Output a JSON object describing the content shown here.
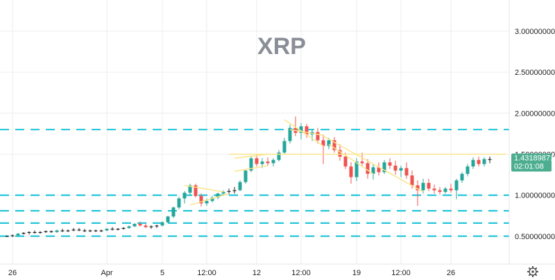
{
  "chart_data": {
    "type": "candlestick",
    "title": "XRP",
    "y_tick_labels": [
      "3.00000000",
      "2.50000000",
      "2.00000000",
      "1.50000000",
      "1.00000000",
      "0.50000000"
    ],
    "y_ticks": [
      3.0,
      2.5,
      2.0,
      1.5,
      1.0,
      0.5
    ],
    "ylim": [
      0.16,
      3.38
    ],
    "x_tick_labels": [
      "26",
      "Apr",
      "5",
      "12:00",
      "12",
      "12:00",
      "19",
      "12:00",
      "26"
    ],
    "x_tick_index": [
      1,
      18,
      28,
      36,
      45,
      53,
      63,
      71,
      80
    ],
    "x_count": 88,
    "current_price": "1.43189871",
    "countdown": "02:01:08",
    "horizontal_levels": [
      1.8,
      1.0,
      0.81,
      0.66,
      0.5
    ],
    "resistance_level": 1.5,
    "grid": true,
    "colors": {
      "up": "#26a69a",
      "down": "#ef5350",
      "level": "#26c6da",
      "trendline": "#fbe58a",
      "tag_bg": "#4cae8f",
      "axis_text": "#222222",
      "title": "#8a8e96"
    },
    "candles": [
      [
        0.5,
        0.51,
        0.49,
        0.5
      ],
      [
        0.5,
        0.52,
        0.49,
        0.51
      ],
      [
        0.51,
        0.54,
        0.5,
        0.53
      ],
      [
        0.53,
        0.55,
        0.52,
        0.54
      ],
      [
        0.54,
        0.56,
        0.52,
        0.55
      ],
      [
        0.55,
        0.57,
        0.53,
        0.54
      ],
      [
        0.54,
        0.56,
        0.53,
        0.55
      ],
      [
        0.55,
        0.57,
        0.54,
        0.56
      ],
      [
        0.56,
        0.57,
        0.54,
        0.55
      ],
      [
        0.55,
        0.58,
        0.54,
        0.57
      ],
      [
        0.57,
        0.59,
        0.55,
        0.56
      ],
      [
        0.56,
        0.58,
        0.55,
        0.57
      ],
      [
        0.57,
        0.6,
        0.56,
        0.58
      ],
      [
        0.58,
        0.6,
        0.56,
        0.57
      ],
      [
        0.57,
        0.59,
        0.55,
        0.56
      ],
      [
        0.56,
        0.58,
        0.55,
        0.57
      ],
      [
        0.57,
        0.58,
        0.55,
        0.56
      ],
      [
        0.56,
        0.58,
        0.55,
        0.57
      ],
      [
        0.57,
        0.6,
        0.56,
        0.59
      ],
      [
        0.59,
        0.61,
        0.57,
        0.58
      ],
      [
        0.58,
        0.6,
        0.57,
        0.59
      ],
      [
        0.59,
        0.61,
        0.58,
        0.6
      ],
      [
        0.6,
        0.63,
        0.59,
        0.62
      ],
      [
        0.62,
        0.66,
        0.61,
        0.65
      ],
      [
        0.65,
        0.68,
        0.62,
        0.63
      ],
      [
        0.63,
        0.65,
        0.6,
        0.61
      ],
      [
        0.61,
        0.63,
        0.59,
        0.62
      ],
      [
        0.62,
        0.64,
        0.6,
        0.63
      ],
      [
        0.63,
        0.68,
        0.62,
        0.67
      ],
      [
        0.67,
        0.75,
        0.66,
        0.74
      ],
      [
        0.74,
        0.86,
        0.72,
        0.85
      ],
      [
        0.85,
        0.98,
        0.83,
        0.96
      ],
      [
        0.96,
        1.05,
        0.9,
        1.03
      ],
      [
        1.03,
        1.14,
        1.0,
        1.12
      ],
      [
        1.12,
        1.14,
        0.97,
        0.99
      ],
      [
        0.99,
        1.02,
        0.86,
        0.9
      ],
      [
        0.9,
        0.96,
        0.87,
        0.93
      ],
      [
        0.93,
        0.99,
        0.91,
        0.97
      ],
      [
        0.97,
        1.03,
        0.95,
        1.02
      ],
      [
        1.02,
        1.06,
        0.99,
        1.04
      ],
      [
        1.04,
        1.08,
        1.01,
        1.05
      ],
      [
        1.05,
        1.1,
        1.02,
        1.06
      ],
      [
        1.06,
        1.18,
        1.05,
        1.16
      ],
      [
        1.16,
        1.32,
        1.14,
        1.3
      ],
      [
        1.3,
        1.48,
        1.28,
        1.45
      ],
      [
        1.45,
        1.5,
        1.35,
        1.38
      ],
      [
        1.38,
        1.45,
        1.33,
        1.41
      ],
      [
        1.41,
        1.46,
        1.36,
        1.39
      ],
      [
        1.39,
        1.45,
        1.35,
        1.43
      ],
      [
        1.43,
        1.55,
        1.41,
        1.52
      ],
      [
        1.52,
        1.7,
        1.5,
        1.66
      ],
      [
        1.66,
        1.86,
        1.63,
        1.82
      ],
      [
        1.82,
        1.96,
        1.72,
        1.76
      ],
      [
        1.76,
        1.88,
        1.68,
        1.84
      ],
      [
        1.84,
        1.87,
        1.7,
        1.74
      ],
      [
        1.74,
        1.8,
        1.66,
        1.77
      ],
      [
        1.77,
        1.82,
        1.63,
        1.67
      ],
      [
        1.67,
        1.74,
        1.38,
        1.6
      ],
      [
        1.6,
        1.7,
        1.56,
        1.67
      ],
      [
        1.67,
        1.71,
        1.52,
        1.55
      ],
      [
        1.55,
        1.62,
        1.42,
        1.47
      ],
      [
        1.47,
        1.52,
        1.32,
        1.35
      ],
      [
        1.35,
        1.4,
        1.14,
        1.22
      ],
      [
        1.22,
        1.45,
        1.17,
        1.41
      ],
      [
        1.41,
        1.52,
        1.36,
        1.39
      ],
      [
        1.39,
        1.44,
        1.2,
        1.26
      ],
      [
        1.26,
        1.38,
        1.19,
        1.34
      ],
      [
        1.34,
        1.4,
        1.24,
        1.28
      ],
      [
        1.28,
        1.43,
        1.26,
        1.4
      ],
      [
        1.4,
        1.45,
        1.32,
        1.36
      ],
      [
        1.36,
        1.42,
        1.25,
        1.3
      ],
      [
        1.3,
        1.36,
        1.22,
        1.33
      ],
      [
        1.33,
        1.4,
        1.2,
        1.24
      ],
      [
        1.24,
        1.3,
        1.08,
        1.12
      ],
      [
        1.12,
        1.18,
        0.87,
        1.06
      ],
      [
        1.06,
        1.2,
        1.02,
        1.15
      ],
      [
        1.15,
        1.2,
        1.05,
        1.08
      ],
      [
        1.08,
        1.13,
        1.02,
        1.06
      ],
      [
        1.06,
        1.1,
        1.01,
        1.04
      ],
      [
        1.04,
        1.1,
        1.02,
        1.08
      ],
      [
        1.08,
        1.14,
        1.03,
        1.06
      ],
      [
        1.06,
        1.2,
        0.95,
        1.18
      ],
      [
        1.18,
        1.28,
        1.15,
        1.26
      ],
      [
        1.26,
        1.38,
        1.23,
        1.35
      ],
      [
        1.35,
        1.46,
        1.32,
        1.43
      ],
      [
        1.43,
        1.47,
        1.35,
        1.38
      ],
      [
        1.38,
        1.46,
        1.35,
        1.44
      ],
      [
        1.44,
        1.47,
        1.39,
        1.43
      ]
    ]
  }
}
